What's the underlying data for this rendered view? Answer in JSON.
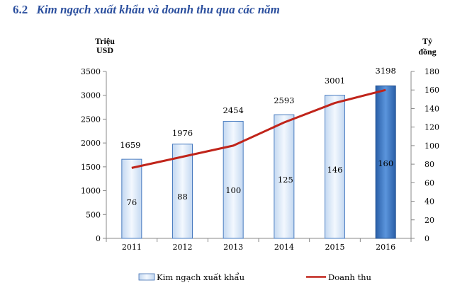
{
  "heading": {
    "number": "6.2",
    "text": "Kim ngạch xuất khẩu và doanh thu qua các năm"
  },
  "colors": {
    "heading": "#2b4f9e",
    "bar_light": "#dce9f8",
    "bar_dark": "#3c7ac9",
    "line": "#c0241a"
  },
  "chart_data": {
    "type": "bar",
    "categories": [
      "2011",
      "2012",
      "2013",
      "2014",
      "2015",
      "2016"
    ],
    "series": [
      {
        "name": "Kim ngạch xuất khẩu",
        "type": "bar",
        "axis": "left",
        "values": [
          1659,
          1976,
          2454,
          2593,
          3001,
          3198
        ]
      },
      {
        "name": "Doanh thu",
        "type": "line",
        "axis": "right",
        "values": [
          76,
          88,
          100,
          125,
          146,
          160
        ]
      }
    ],
    "bar_value_labels": [
      "1659",
      "1976",
      "2454",
      "2593",
      "3001",
      "3198"
    ],
    "line_value_labels": [
      "76",
      "88",
      "100",
      "125",
      "146",
      "160"
    ],
    "y_left": {
      "label_line1": "Triệu",
      "label_line2": "USD",
      "min": 0,
      "max": 3500,
      "ticks": [
        "0",
        "500",
        "1000",
        "1500",
        "2000",
        "2500",
        "3000",
        "3500"
      ]
    },
    "y_right": {
      "label_line1": "Tỷ",
      "label_line2": "đồng",
      "min": 0,
      "max": 180,
      "ticks": [
        "0",
        "20",
        "40",
        "60",
        "80",
        "100",
        "120",
        "140",
        "160",
        "180"
      ]
    },
    "legend_position": "bottom",
    "grid": false
  }
}
